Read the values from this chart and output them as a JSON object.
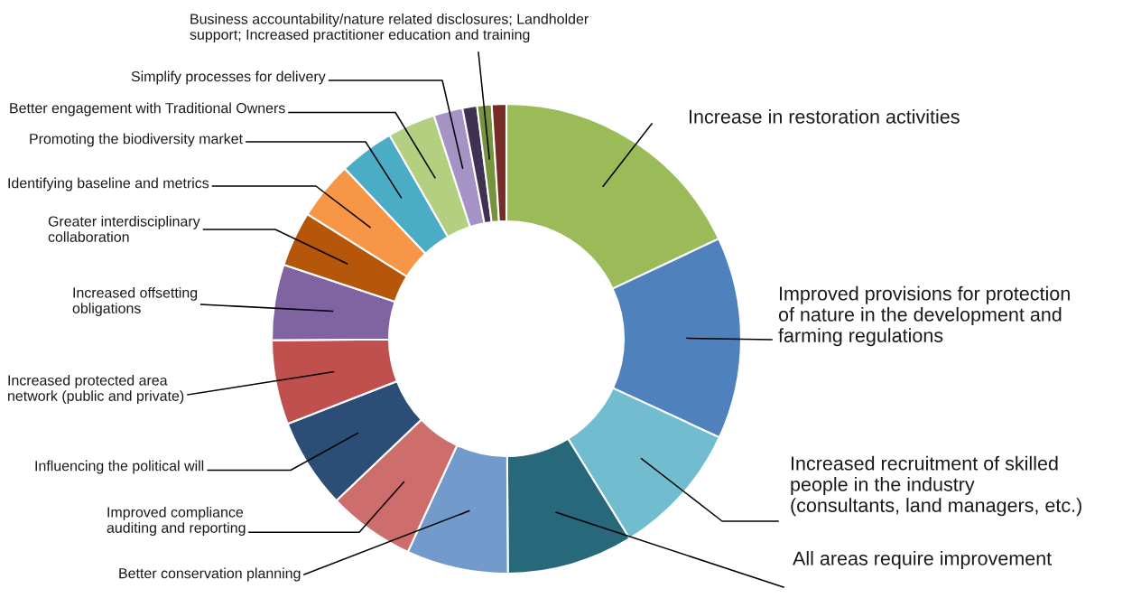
{
  "chart_data": {
    "type": "donut",
    "categories": [
      "Increase in restoration activities",
      "Improved provisions for protection\nof nature in the development and\nfarming regulations",
      "Increased recruitment of skilled\npeople in the industry\n(consultants, land managers, etc.)",
      "All areas require improvement",
      "Better conservation planning",
      "Improved compliance\nauditing and reporting",
      "Influencing the political will",
      "Increased protected area\nnetwork (public and private)",
      "Increased offsetting\nobligations",
      "Greater interdisciplinary\ncollaboration",
      "Identifying baseline and metrics",
      "Promoting the biodiversity market",
      "Better engagement with Traditional Owners",
      "Simplify processes for delivery",
      null,
      null,
      null
    ],
    "values": [
      18,
      13.9,
      9.3,
      8.7,
      7,
      6,
      6.2,
      5.8,
      5.2,
      3.8,
      4,
      3.8,
      3.3,
      2,
      1,
      1,
      1
    ],
    "colors": [
      "#9bbb59",
      "#4f81bd",
      "#72bcd0",
      "#27687a",
      "#729aca",
      "#cd6e6c",
      "#2c4d75",
      "#c0504d",
      "#8064a2",
      "#b5560b",
      "#f79646",
      "#4bacc6",
      "#b3cf80",
      "#a593c5",
      "#3f3151",
      "#77933c",
      "#772c2a"
    ],
    "annotations": [
      "Business accountability/nature related disclosures; Landholder\nsupport; Increased practitioner education and training"
    ],
    "legend": false
  }
}
